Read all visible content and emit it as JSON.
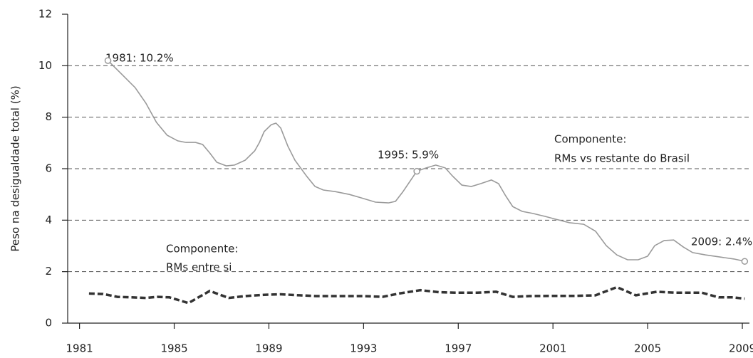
{
  "chart_data": {
    "type": "line",
    "y_label": "Peso na desigualdade total (%)",
    "xlim": [
      1980.5,
      2009.3
    ],
    "xticks": [
      1981,
      1985,
      1989,
      1993,
      1997,
      2001,
      2005,
      2009
    ],
    "ylim": [
      0,
      12
    ],
    "yticks": [
      0,
      2,
      4,
      6,
      8,
      10,
      12
    ],
    "grid": true,
    "series": [
      {
        "color": "#9a9a9a",
        "line_style": "solid",
        "x": [
          1982.2,
          1982.75,
          1983.35,
          1983.8,
          1984.25,
          1984.7,
          1985.15,
          1985.5,
          1985.9,
          1986.2,
          1986.5,
          1986.8,
          1987.2,
          1987.55,
          1988.0,
          1988.4,
          1988.6,
          1988.8,
          1989.1,
          1989.3,
          1989.5,
          1989.8,
          1990.1,
          1990.6,
          1990.95,
          1991.3,
          1991.8,
          1992.4,
          1993.0,
          1993.5,
          1994.05,
          1994.35,
          1994.65,
          1995.25,
          1995.65,
          1996.05,
          1996.45,
          1996.75,
          1997.15,
          1997.55,
          1997.95,
          1998.4,
          1998.7,
          1999.0,
          1999.3,
          1999.7,
          2000.15,
          2000.65,
          2001.1,
          2001.7,
          2002.3,
          2002.8,
          2003.25,
          2003.7,
          2004.15,
          2004.6,
          2005.0,
          2005.3,
          2005.7,
          2006.1,
          2006.5,
          2006.9,
          2007.45,
          2008.05,
          2008.65,
          2009.1
        ],
        "values": [
          10.2,
          9.7,
          9.15,
          8.55,
          7.8,
          7.3,
          7.08,
          7.02,
          7.02,
          6.94,
          6.61,
          6.25,
          6.11,
          6.14,
          6.33,
          6.69,
          7.02,
          7.44,
          7.71,
          7.77,
          7.58,
          6.88,
          6.33,
          5.7,
          5.31,
          5.17,
          5.11,
          5.0,
          4.84,
          4.7,
          4.67,
          4.73,
          5.09,
          5.9,
          6.03,
          6.14,
          6.03,
          5.72,
          5.36,
          5.31,
          5.42,
          5.56,
          5.42,
          4.95,
          4.53,
          4.34,
          4.26,
          4.15,
          4.04,
          3.9,
          3.84,
          3.57,
          3.01,
          2.65,
          2.46,
          2.46,
          2.6,
          3.01,
          3.21,
          3.23,
          2.96,
          2.74,
          2.65,
          2.57,
          2.49,
          2.4
        ]
      },
      {
        "color": "#333333",
        "line_style": "dashed",
        "x": [
          1981.4,
          1982.0,
          1982.6,
          1983.2,
          1983.8,
          1984.3,
          1984.8,
          1985.6,
          1986.5,
          1987.3,
          1988.0,
          1988.8,
          1989.5,
          1990.3,
          1991.0,
          1992.0,
          1993.0,
          1993.8,
          1994.5,
          1995.4,
          1996.2,
          1997.0,
          1997.8,
          1998.6,
          1999.3,
          2000.0,
          2001.0,
          2002.0,
          2002.8,
          2003.7,
          2004.5,
          2005.4,
          2006.2,
          2007.3,
          2008.0,
          2008.6,
          2009.1
        ],
        "values": [
          1.15,
          1.13,
          1.02,
          1.0,
          0.98,
          1.02,
          1.0,
          0.78,
          1.25,
          0.98,
          1.05,
          1.1,
          1.12,
          1.08,
          1.05,
          1.05,
          1.05,
          1.02,
          1.15,
          1.28,
          1.2,
          1.18,
          1.18,
          1.22,
          1.02,
          1.05,
          1.06,
          1.06,
          1.08,
          1.4,
          1.08,
          1.22,
          1.18,
          1.18,
          1.0,
          1.0,
          0.95
        ]
      }
    ],
    "annotations": [
      "1981: 10.2%",
      "1995: 5.9%",
      "2009: 2.4%"
    ],
    "component_labels": [
      [
        "Componente:",
        "RMs vs restante do Brasil"
      ],
      [
        "Componente:",
        "RMs entre si"
      ]
    ]
  }
}
